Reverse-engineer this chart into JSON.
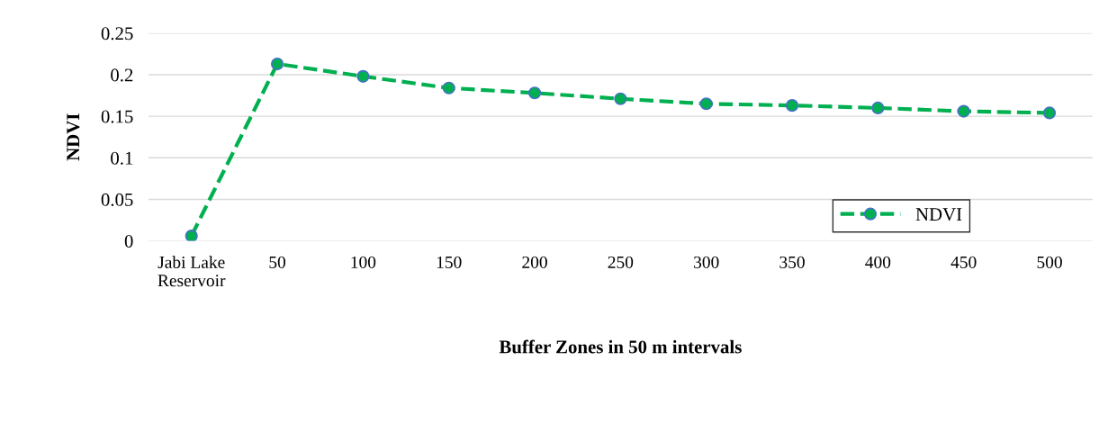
{
  "chart_data": {
    "type": "line",
    "xlabel": "Buffer Zones in 50 m intervals",
    "ylabel": "NDVI",
    "categories": [
      "Jabi Lake\nReservoir",
      "50",
      "100",
      "150",
      "200",
      "250",
      "300",
      "350",
      "400",
      "450",
      "500"
    ],
    "series": [
      {
        "name": "NDVI",
        "color": "#00b050",
        "values": [
          0.006,
          0.213,
          0.198,
          0.184,
          0.178,
          0.171,
          0.165,
          0.163,
          0.16,
          0.156,
          0.154
        ]
      }
    ],
    "ylim": [
      0,
      0.25
    ],
    "yticks": [
      0,
      0.05,
      0.1,
      0.15,
      0.2,
      0.25
    ],
    "grid": "y",
    "legend": "right",
    "marker": "circle",
    "line_style": "dashed"
  }
}
